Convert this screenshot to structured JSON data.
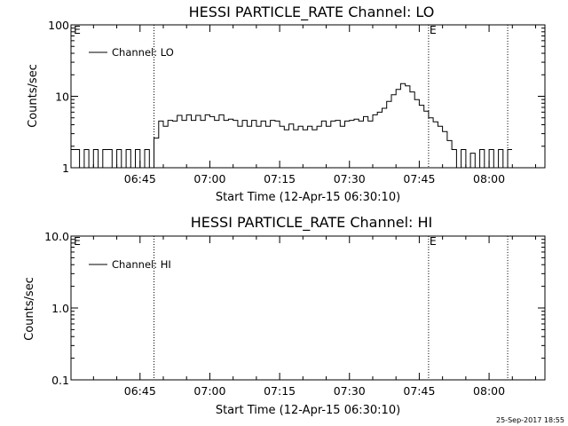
{
  "footer_timestamp": "25-Sep-2017 18:55",
  "chart_data": [
    {
      "type": "line",
      "title": "HESSI PARTICLE_RATE Channel: LO",
      "xlabel": "Start Time (12-Apr-15 06:30:10)",
      "ylabel": "Counts/sec",
      "y_scale": "log",
      "ylim": [
        1,
        100
      ],
      "y_ticks": [
        {
          "value": 1,
          "label": "1"
        },
        {
          "value": 10,
          "label": "10"
        },
        {
          "value": 100,
          "label": "100"
        }
      ],
      "xlim": [
        "06:30:10",
        "08:12:00"
      ],
      "x_ticks": [
        "06:45",
        "07:00",
        "07:15",
        "07:30",
        "07:45",
        "08:00"
      ],
      "markers": [
        {
          "x": "06:48:00",
          "label": ""
        },
        {
          "x": "07:47:00",
          "label": "E"
        },
        {
          "x": "08:04:00",
          "label": ""
        }
      ],
      "corner_label": "E",
      "legend_position": "top-left",
      "series": [
        {
          "name": "Channel: LO",
          "x": [
            "06:30:10",
            "06:32:00",
            "06:33:00",
            "06:34:00",
            "06:35:00",
            "06:36:00",
            "06:37:00",
            "06:38:00",
            "06:39:00",
            "06:40:00",
            "06:41:00",
            "06:42:00",
            "06:43:00",
            "06:44:00",
            "06:45:00",
            "06:46:00",
            "06:47:00",
            "06:48:00",
            "06:49:00",
            "06:50:00",
            "06:51:00",
            "06:52:00",
            "06:53:00",
            "06:54:00",
            "06:55:00",
            "06:56:00",
            "06:57:00",
            "06:58:00",
            "06:59:00",
            "07:00:00",
            "07:01:00",
            "07:02:00",
            "07:03:00",
            "07:04:00",
            "07:05:00",
            "07:06:00",
            "07:07:00",
            "07:08:00",
            "07:09:00",
            "07:10:00",
            "07:11:00",
            "07:12:00",
            "07:13:00",
            "07:14:00",
            "07:15:00",
            "07:16:00",
            "07:17:00",
            "07:18:00",
            "07:19:00",
            "07:20:00",
            "07:21:00",
            "07:22:00",
            "07:23:00",
            "07:24:00",
            "07:25:00",
            "07:26:00",
            "07:27:00",
            "07:28:00",
            "07:29:00",
            "07:30:00",
            "07:31:00",
            "07:32:00",
            "07:33:00",
            "07:34:00",
            "07:35:00",
            "07:36:00",
            "07:37:00",
            "07:38:00",
            "07:39:00",
            "07:40:00",
            "07:41:00",
            "07:42:00",
            "07:43:00",
            "07:44:00",
            "07:45:00",
            "07:46:00",
            "07:47:00",
            "07:48:00",
            "07:49:00",
            "07:50:00",
            "07:51:00",
            "07:52:00",
            "07:53:00",
            "07:54:00",
            "07:55:00",
            "07:56:00",
            "07:57:00",
            "07:58:00",
            "07:59:00",
            "08:00:00",
            "08:01:00",
            "08:02:00",
            "08:03:00",
            "08:04:00"
          ],
          "values": [
            1.8,
            1.0,
            1.8,
            1.0,
            1.8,
            1.0,
            1.8,
            1.8,
            1.0,
            1.8,
            1.0,
            1.8,
            1.0,
            1.8,
            1.0,
            1.8,
            1.0,
            2.6,
            4.5,
            3.8,
            4.6,
            4.5,
            5.4,
            4.6,
            5.5,
            4.6,
            5.4,
            4.6,
            5.5,
            5.2,
            4.6,
            5.5,
            4.6,
            4.8,
            4.6,
            3.8,
            4.6,
            3.8,
            4.6,
            3.8,
            4.5,
            3.8,
            4.6,
            4.5,
            3.8,
            3.4,
            4.1,
            3.4,
            3.8,
            3.4,
            3.8,
            3.4,
            3.8,
            4.5,
            3.8,
            4.5,
            4.6,
            3.8,
            4.5,
            4.6,
            4.8,
            4.5,
            5.2,
            4.5,
            5.5,
            6.0,
            6.8,
            8.5,
            10.5,
            12.5,
            15.0,
            14.0,
            11.5,
            9.0,
            7.5,
            6.2,
            5.0,
            4.4,
            3.8,
            3.2,
            2.4,
            1.8,
            1.0,
            1.8,
            1.0,
            1.6,
            1.0,
            1.8,
            1.0,
            1.8,
            1.0,
            1.8,
            1.0,
            1.8
          ]
        }
      ]
    },
    {
      "type": "line",
      "title": "HESSI PARTICLE_RATE Channel: HI",
      "xlabel": "Start Time (12-Apr-15 06:30:10)",
      "ylabel": "Counts/sec",
      "y_scale": "log",
      "ylim": [
        0.1,
        10
      ],
      "y_ticks": [
        {
          "value": 0.1,
          "label": "0.1"
        },
        {
          "value": 1,
          "label": "1.0"
        },
        {
          "value": 10,
          "label": "10.0"
        }
      ],
      "xlim": [
        "06:30:10",
        "08:12:00"
      ],
      "x_ticks": [
        "06:45",
        "07:00",
        "07:15",
        "07:30",
        "07:45",
        "08:00"
      ],
      "markers": [
        {
          "x": "06:48:00",
          "label": ""
        },
        {
          "x": "07:47:00",
          "label": "E"
        },
        {
          "x": "08:04:00",
          "label": ""
        }
      ],
      "corner_label": "E",
      "legend_position": "top-left",
      "series": [
        {
          "name": "Channel: HI",
          "x": [],
          "values": []
        }
      ]
    }
  ]
}
